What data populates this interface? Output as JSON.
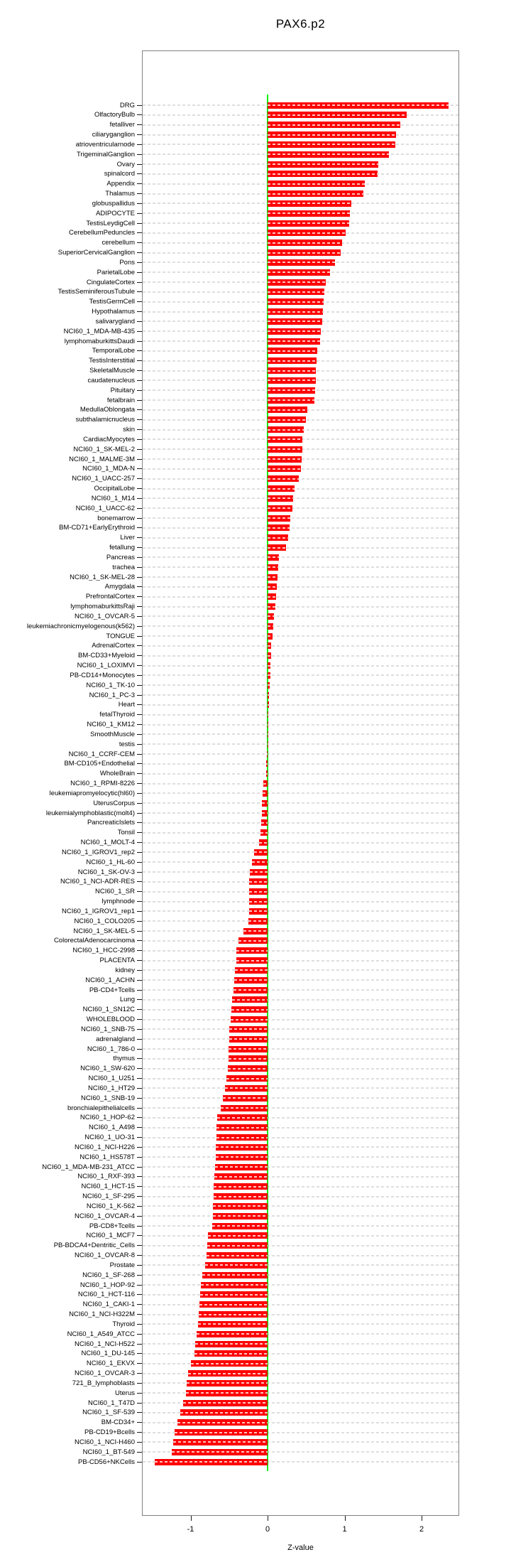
{
  "colors": {
    "bar": "#FF0000",
    "zero_line": "#00EE00",
    "box_border": "#808080",
    "gridline": "#DEDEDE",
    "text": "#000000"
  },
  "chart_data": {
    "type": "bar",
    "orientation": "horizontal",
    "title": "PAX6.p2",
    "xlabel": "Z-value",
    "ylabel": "",
    "xlim": [
      -1.63,
      2.49
    ],
    "x_ticks": [
      -1,
      0,
      1,
      2
    ],
    "grid": "dashed-horizontal-per-category",
    "legend": "none",
    "zero_reference_line": 0,
    "categories": [
      "DRG",
      "OlfactoryBulb",
      "fetalliver",
      "ciliaryganglion",
      "atrioventricularnode",
      "TrigeminalGanglion",
      "Ovary",
      "spinalcord",
      "Appendix",
      "Thalamus",
      "globuspallidus",
      "ADIPOCYTE",
      "TestisLeydigCell",
      "CerebellumPeduncles",
      "cerebellum",
      "SuperiorCervicalGanglion",
      "Pons",
      "ParietalLobe",
      "CingulateCortex",
      "TestisSeminiferousTubule",
      "TestisGermCell",
      "Hypothalamus",
      "salivarygland",
      "NCI60_1_MDA-MB-435",
      "lymphomaburkittsDaudi",
      "TemporalLobe",
      "TestisInterstitial",
      "SkeletalMuscle",
      "caudatenucleus",
      "Pituitary",
      "fetalbrain",
      "MedullaOblongata",
      "subthalamicnucleus",
      "skin",
      "CardiacMyocytes",
      "NCI60_1_SK-MEL-2",
      "NCI60_1_MALME-3M",
      "NCI60_1_MDA-N",
      "NCI60_1_UACC-257",
      "OccipitalLobe",
      "NCI60_1_M14",
      "NCI60_1_UACC-62",
      "bonemarrow",
      "BM-CD71+EarlyErythroid",
      "Liver",
      "fetallung",
      "Pancreas",
      "trachea",
      "NCI60_1_SK-MEL-28",
      "Amygdala",
      "PrefrontalCortex",
      "lymphomaburkittsRaji",
      "NCI60_1_OVCAR-5",
      "leukemiachronicmyelogenous(k562)",
      "TONGUE",
      "AdrenalCortex",
      "BM-CD33+Myeloid",
      "NCI60_1_LOXIMVI",
      "PB-CD14+Monocytes",
      "NCI60_1_TK-10",
      "NCI60_1_PC-3",
      "Heart",
      "fetalThyroid",
      "NCI60_1_KM12",
      "SmoothMuscle",
      "testis",
      "NCI60_1_CCRF-CEM",
      "BM-CD105+Endothelial",
      "WholeBrain",
      "NCI60_1_RPMI-8226",
      "leukemiapromyelocytic(hl60)",
      "UterusCorpus",
      "leukemialymphoblastic(molt4)",
      "PancreaticIslets",
      "Tonsil",
      "NCI60_1_MOLT-4",
      "NCI60_1_IGROV1_rep2",
      "NCI60_1_HL-60",
      "NCI60_1_SK-OV-3",
      "NCI60_1_NCI-ADR-RES",
      "NCI60_1_SR",
      "lymphnode",
      "NCI60_1_IGROV1_rep1",
      "NCI60_1_COLO205",
      "NCI60_1_SK-MEL-5",
      "ColorectalAdenocarcinoma",
      "NCI60_1_HCC-2998",
      "PLACENTA",
      "kidney",
      "NCI60_1_ACHN",
      "PB-CD4+Tcells",
      "Lung",
      "NCI60_1_SN12C",
      "WHOLEBLOOD",
      "NCI60_1_SNB-75",
      "adrenalgland",
      "NCI60_1_786-0",
      "thymus",
      "NCI60_1_SW-620",
      "NCI60_1_U251",
      "NCI60_1_HT29",
      "NCI60_1_SNB-19",
      "bronchialepithelialcells",
      "NCI60_1_HOP-62",
      "NCI60_1_A498",
      "NCI60_1_UO-31",
      "NCI60_1_NCI-H226",
      "NCI60_1_HS578T",
      "NCI60_1_MDA-MB-231_ATCC",
      "NCI60_1_RXF-393",
      "NCI60_1_HCT-15",
      "NCI60_1_SF-295",
      "NCI60_1_K-562",
      "NCI60_1_OVCAR-4",
      "PB-CD8+Tcells",
      "NCI60_1_MCF7",
      "PB-BDCA4+Dentritic_Cells",
      "NCI60_1_OVCAR-8",
      "Prostate",
      "NCI60_1_SF-268",
      "NCI60_1_HOP-92",
      "NCI60_1_HCT-116",
      "NCI60_1_CAKI-1",
      "NCI60_1_NCI-H322M",
      "Thyroid",
      "NCI60_1_A549_ATCC",
      "NCI60_1_NCI-H522",
      "NCI60_1_DU-145",
      "NCI60_1_EKVX",
      "NCI60_1_OVCAR-3",
      "721_B_lymphoblasts",
      "Uterus",
      "NCI60_1_T47D",
      "NCI60_1_SF-539",
      "BM-CD34+",
      "PB-CD19+Bcells",
      "NCI60_1_NCI-H460",
      "NCI60_1_BT-549",
      "PB-CD56+NKCells"
    ],
    "values": [
      2.35,
      1.81,
      1.72,
      1.67,
      1.66,
      1.58,
      1.44,
      1.43,
      1.26,
      1.24,
      1.09,
      1.07,
      1.06,
      1.01,
      0.97,
      0.95,
      0.88,
      0.81,
      0.76,
      0.74,
      0.73,
      0.72,
      0.71,
      0.69,
      0.68,
      0.645,
      0.64,
      0.63,
      0.625,
      0.62,
      0.61,
      0.52,
      0.5,
      0.47,
      0.455,
      0.45,
      0.44,
      0.43,
      0.41,
      0.35,
      0.33,
      0.32,
      0.295,
      0.29,
      0.27,
      0.24,
      0.15,
      0.14,
      0.13,
      0.12,
      0.11,
      0.1,
      0.085,
      0.07,
      0.06,
      0.05,
      0.045,
      0.04,
      0.035,
      0.025,
      0.02,
      0.015,
      0.01,
      0.008,
      0.005,
      0.002,
      -0.01,
      -0.015,
      -0.02,
      -0.055,
      -0.06,
      -0.07,
      -0.075,
      -0.08,
      -0.095,
      -0.11,
      -0.175,
      -0.2,
      -0.235,
      -0.238,
      -0.24,
      -0.24,
      -0.242,
      -0.245,
      -0.31,
      -0.375,
      -0.405,
      -0.41,
      -0.42,
      -0.43,
      -0.445,
      -0.46,
      -0.47,
      -0.48,
      -0.5,
      -0.5,
      -0.505,
      -0.51,
      -0.52,
      -0.53,
      -0.55,
      -0.585,
      -0.61,
      -0.65,
      -0.66,
      -0.66,
      -0.67,
      -0.675,
      -0.68,
      -0.69,
      -0.7,
      -0.705,
      -0.71,
      -0.71,
      -0.715,
      -0.77,
      -0.78,
      -0.79,
      -0.81,
      -0.85,
      -0.87,
      -0.88,
      -0.885,
      -0.89,
      -0.9,
      -0.92,
      -0.94,
      -0.95,
      -1.0,
      -1.035,
      -1.05,
      -1.06,
      -1.1,
      -1.13,
      -1.17,
      -1.21,
      -1.23,
      -1.24,
      -1.47
    ]
  }
}
